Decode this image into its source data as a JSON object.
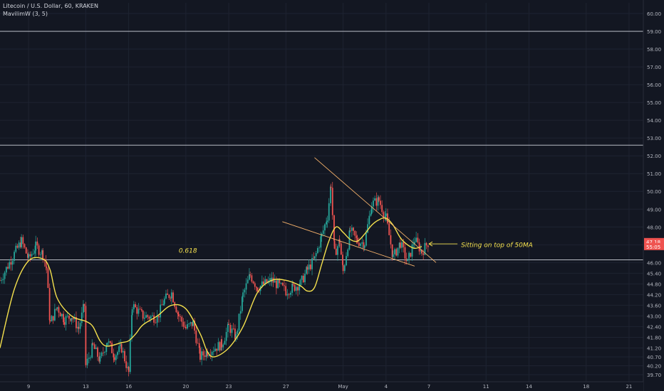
{
  "header": {
    "title": "Litecoin / U.S. Dollar, 60, KRAKEN",
    "indicator": "MavilimW (3, 5)"
  },
  "chart_data": {
    "type": "candlestick",
    "symbol": "LTCUSD",
    "timeframe": "60",
    "exchange": "KRAKEN",
    "ylim": [
      39.3,
      60.6
    ],
    "xlim": [
      0,
      90
    ],
    "y_ticks": [
      "60.00",
      "59.00",
      "58.00",
      "57.00",
      "56.00",
      "55.00",
      "54.00",
      "53.00",
      "52.00",
      "51.00",
      "50.00",
      "49.00",
      "48.00",
      "47.00",
      "46.00",
      "45.40",
      "44.80",
      "44.20",
      "43.60",
      "43.00",
      "42.40",
      "41.80",
      "41.20",
      "40.70",
      "40.20",
      "39.70"
    ],
    "x_ticks": [
      {
        "label": "9",
        "x": 4
      },
      {
        "label": "13",
        "x": 12
      },
      {
        "label": "16",
        "x": 18
      },
      {
        "label": "20",
        "x": 26
      },
      {
        "label": "23",
        "x": 32
      },
      {
        "label": "27",
        "x": 40
      },
      {
        "label": "May",
        "x": 48
      },
      {
        "label": "4",
        "x": 54
      },
      {
        "label": "7",
        "x": 60
      },
      {
        "label": "11",
        "x": 68
      },
      {
        "label": "14",
        "x": 74
      },
      {
        "label": "18",
        "x": 82
      },
      {
        "label": "21",
        "x": 88
      }
    ],
    "horizontal_lines": [
      {
        "price": 59.0
      },
      {
        "price": 52.6
      },
      {
        "price": 46.15
      }
    ],
    "fib_label": {
      "text": "0.618",
      "x": 25,
      "y": 46.55
    },
    "trendlines": [
      {
        "x1": 44,
        "y1": 51.9,
        "x2": 61,
        "y2": 46.0
      },
      {
        "x1": 39.5,
        "y1": 48.3,
        "x2": 58,
        "y2": 45.8
      }
    ],
    "annotation": {
      "text": "Sitting on top of 50MA",
      "x": 64.5,
      "y": 47.0
    },
    "arrow": {
      "x1": 64,
      "y1": 47.05,
      "x2": 60,
      "y2": 47.05
    },
    "price_labels": [
      {
        "text": "47.18",
        "y": 47.18
      },
      {
        "text": "55:05",
        "y": 46.9
      }
    ],
    "colors": {
      "up": "#26a69a",
      "down": "#ef5350",
      "ma": "#f4e04d",
      "hline": "#d1d4dc",
      "trend": "#f6b26b",
      "annotation": "#f4e04d"
    },
    "ma_points": [
      [
        0,
        41.2
      ],
      [
        2,
        44.5
      ],
      [
        4,
        46.1
      ],
      [
        6,
        46.2
      ],
      [
        7,
        45.6
      ],
      [
        8,
        44.0
      ],
      [
        10,
        43.0
      ],
      [
        12,
        42.7
      ],
      [
        13,
        42.4
      ],
      [
        14,
        41.6
      ],
      [
        15,
        41.3
      ],
      [
        17,
        41.5
      ],
      [
        18,
        41.6
      ],
      [
        19,
        42.0
      ],
      [
        20,
        42.5
      ],
      [
        22,
        43.0
      ],
      [
        24,
        43.6
      ],
      [
        26,
        43.4
      ],
      [
        28,
        42.0
      ],
      [
        29,
        41.0
      ],
      [
        30,
        40.7
      ],
      [
        32,
        41.2
      ],
      [
        34,
        42.4
      ],
      [
        36,
        44.3
      ],
      [
        38,
        45.0
      ],
      [
        40,
        45.0
      ],
      [
        42,
        44.7
      ],
      [
        43,
        44.4
      ],
      [
        44,
        44.6
      ],
      [
        45,
        45.9
      ],
      [
        46,
        47.2
      ],
      [
        47,
        48.0
      ],
      [
        48,
        47.7
      ],
      [
        49,
        47.3
      ],
      [
        50,
        47.2
      ],
      [
        51,
        47.6
      ],
      [
        52,
        48.1
      ],
      [
        53,
        48.4
      ],
      [
        54,
        48.5
      ],
      [
        55,
        48.1
      ],
      [
        56,
        47.4
      ],
      [
        57,
        47.0
      ],
      [
        58,
        46.8
      ],
      [
        59,
        46.9
      ]
    ],
    "candle_seed": [
      [
        0,
        45.0
      ],
      [
        2,
        46.5
      ],
      [
        3,
        47.2
      ],
      [
        4,
        46.2
      ],
      [
        5,
        46.9
      ],
      [
        6,
        46.5
      ],
      [
        6.5,
        45.7
      ],
      [
        7,
        42.6
      ],
      [
        8,
        43.5
      ],
      [
        9,
        42.8
      ],
      [
        10,
        43.0
      ],
      [
        11,
        42.3
      ],
      [
        11.8,
        43.6
      ],
      [
        12,
        40.2
      ],
      [
        13,
        41.3
      ],
      [
        14,
        40.5
      ],
      [
        15,
        41.6
      ],
      [
        16,
        40.8
      ],
      [
        17,
        41.2
      ],
      [
        18,
        39.8
      ],
      [
        18.5,
        43.6
      ],
      [
        20,
        43.0
      ],
      [
        22,
        42.9
      ],
      [
        23,
        43.9
      ],
      [
        24,
        44.3
      ],
      [
        25,
        43.0
      ],
      [
        26,
        42.3
      ],
      [
        27,
        42.6
      ],
      [
        28,
        40.7
      ],
      [
        29,
        41.0
      ],
      [
        31,
        41.4
      ],
      [
        32,
        42.4
      ],
      [
        33,
        41.8
      ],
      [
        34,
        44.2
      ],
      [
        35,
        45.3
      ],
      [
        36,
        44.6
      ],
      [
        38,
        45.0
      ],
      [
        40,
        44.4
      ],
      [
        41,
        44.6
      ],
      [
        42,
        44.8
      ],
      [
        43,
        45.6
      ],
      [
        44,
        46.2
      ],
      [
        45,
        47.5
      ],
      [
        45.8,
        48.6
      ],
      [
        46.3,
        50.4
      ],
      [
        46.8,
        46.5
      ],
      [
        47.5,
        47.2
      ],
      [
        48,
        45.5
      ],
      [
        49,
        47.8
      ],
      [
        50,
        47.2
      ],
      [
        51,
        47.1
      ],
      [
        52,
        49.3
      ],
      [
        53,
        49.5
      ],
      [
        54,
        48.5
      ],
      [
        55,
        46.3
      ],
      [
        56,
        47.1
      ],
      [
        57,
        46.0
      ],
      [
        58,
        47.3
      ],
      [
        59,
        46.6
      ],
      [
        60,
        47.18
      ]
    ]
  }
}
